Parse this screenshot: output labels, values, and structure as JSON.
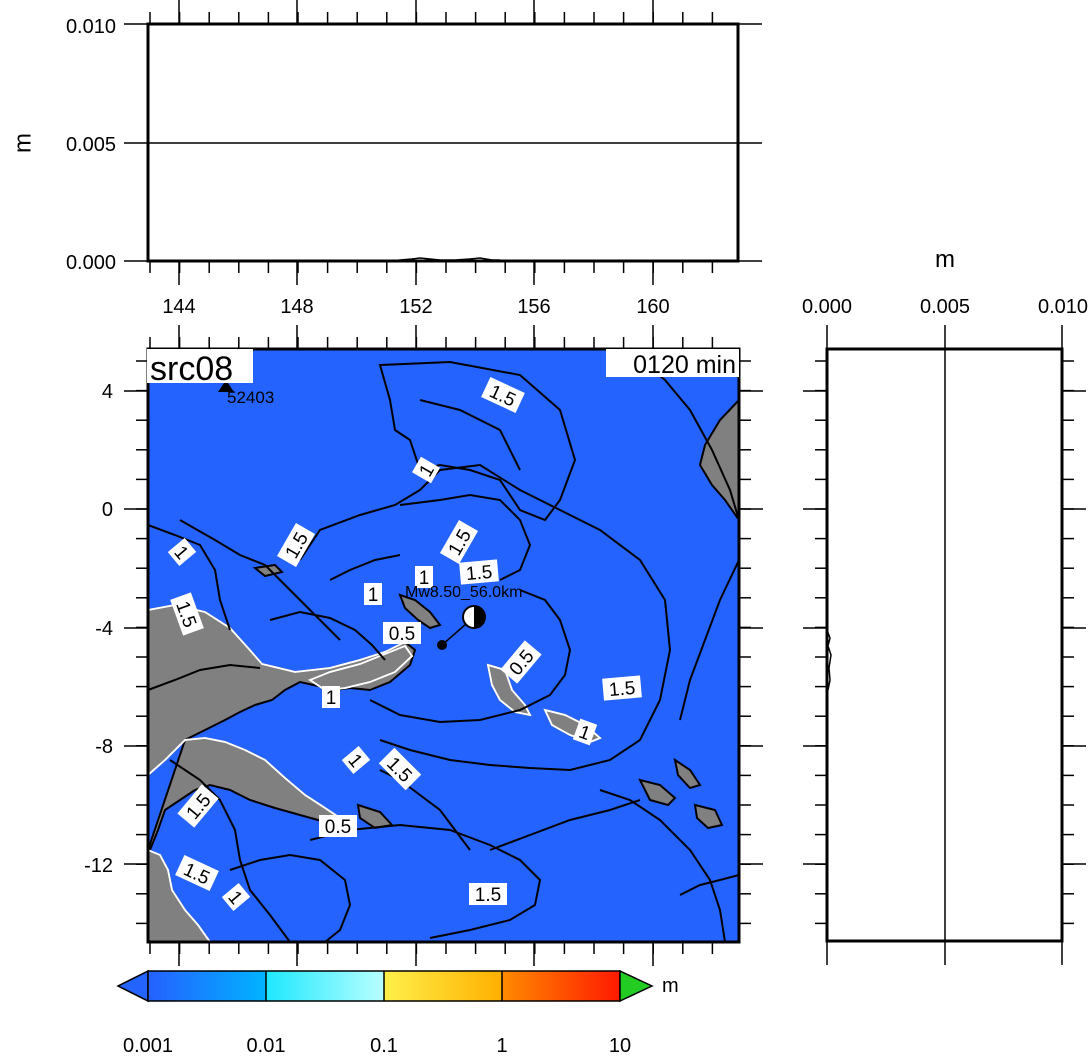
{
  "top_panel": {
    "y_axis_label": "m",
    "y_ticks": [
      "0.010",
      "0.005",
      "0.000"
    ],
    "x_ticks": [
      "144",
      "148",
      "152",
      "156",
      "160"
    ]
  },
  "right_panel": {
    "x_axis_label": "m",
    "x_ticks": [
      "0.000",
      "0.005",
      "0.010"
    ]
  },
  "map": {
    "source_label": "src08",
    "time_label": "0120 min",
    "station_label": "52403",
    "epicenter_label": "Mw8.50_56.0km",
    "lat_ticks": [
      "4",
      "0",
      "-4",
      "-8",
      "-12"
    ],
    "contour_labels": [
      "1.5",
      "1",
      "1.5",
      "1.5",
      "1",
      "1.5",
      "1",
      "1.5",
      "1",
      "0.5",
      "0.5",
      "1.5",
      "1",
      "1",
      "1",
      "1.5",
      "1.5",
      "0.5",
      "1.5",
      "1",
      "1.5"
    ],
    "ocean_color": "#2563ff",
    "land_color": "#808080"
  },
  "colorbar": {
    "ticks": [
      "0.001",
      "0.01",
      "0.1",
      "1",
      "10"
    ],
    "unit": "m",
    "colors": [
      "#2563ff",
      "#00c8ff",
      "#ffff33",
      "#ff7a00",
      "#ff0000",
      "#22cc22"
    ]
  }
}
